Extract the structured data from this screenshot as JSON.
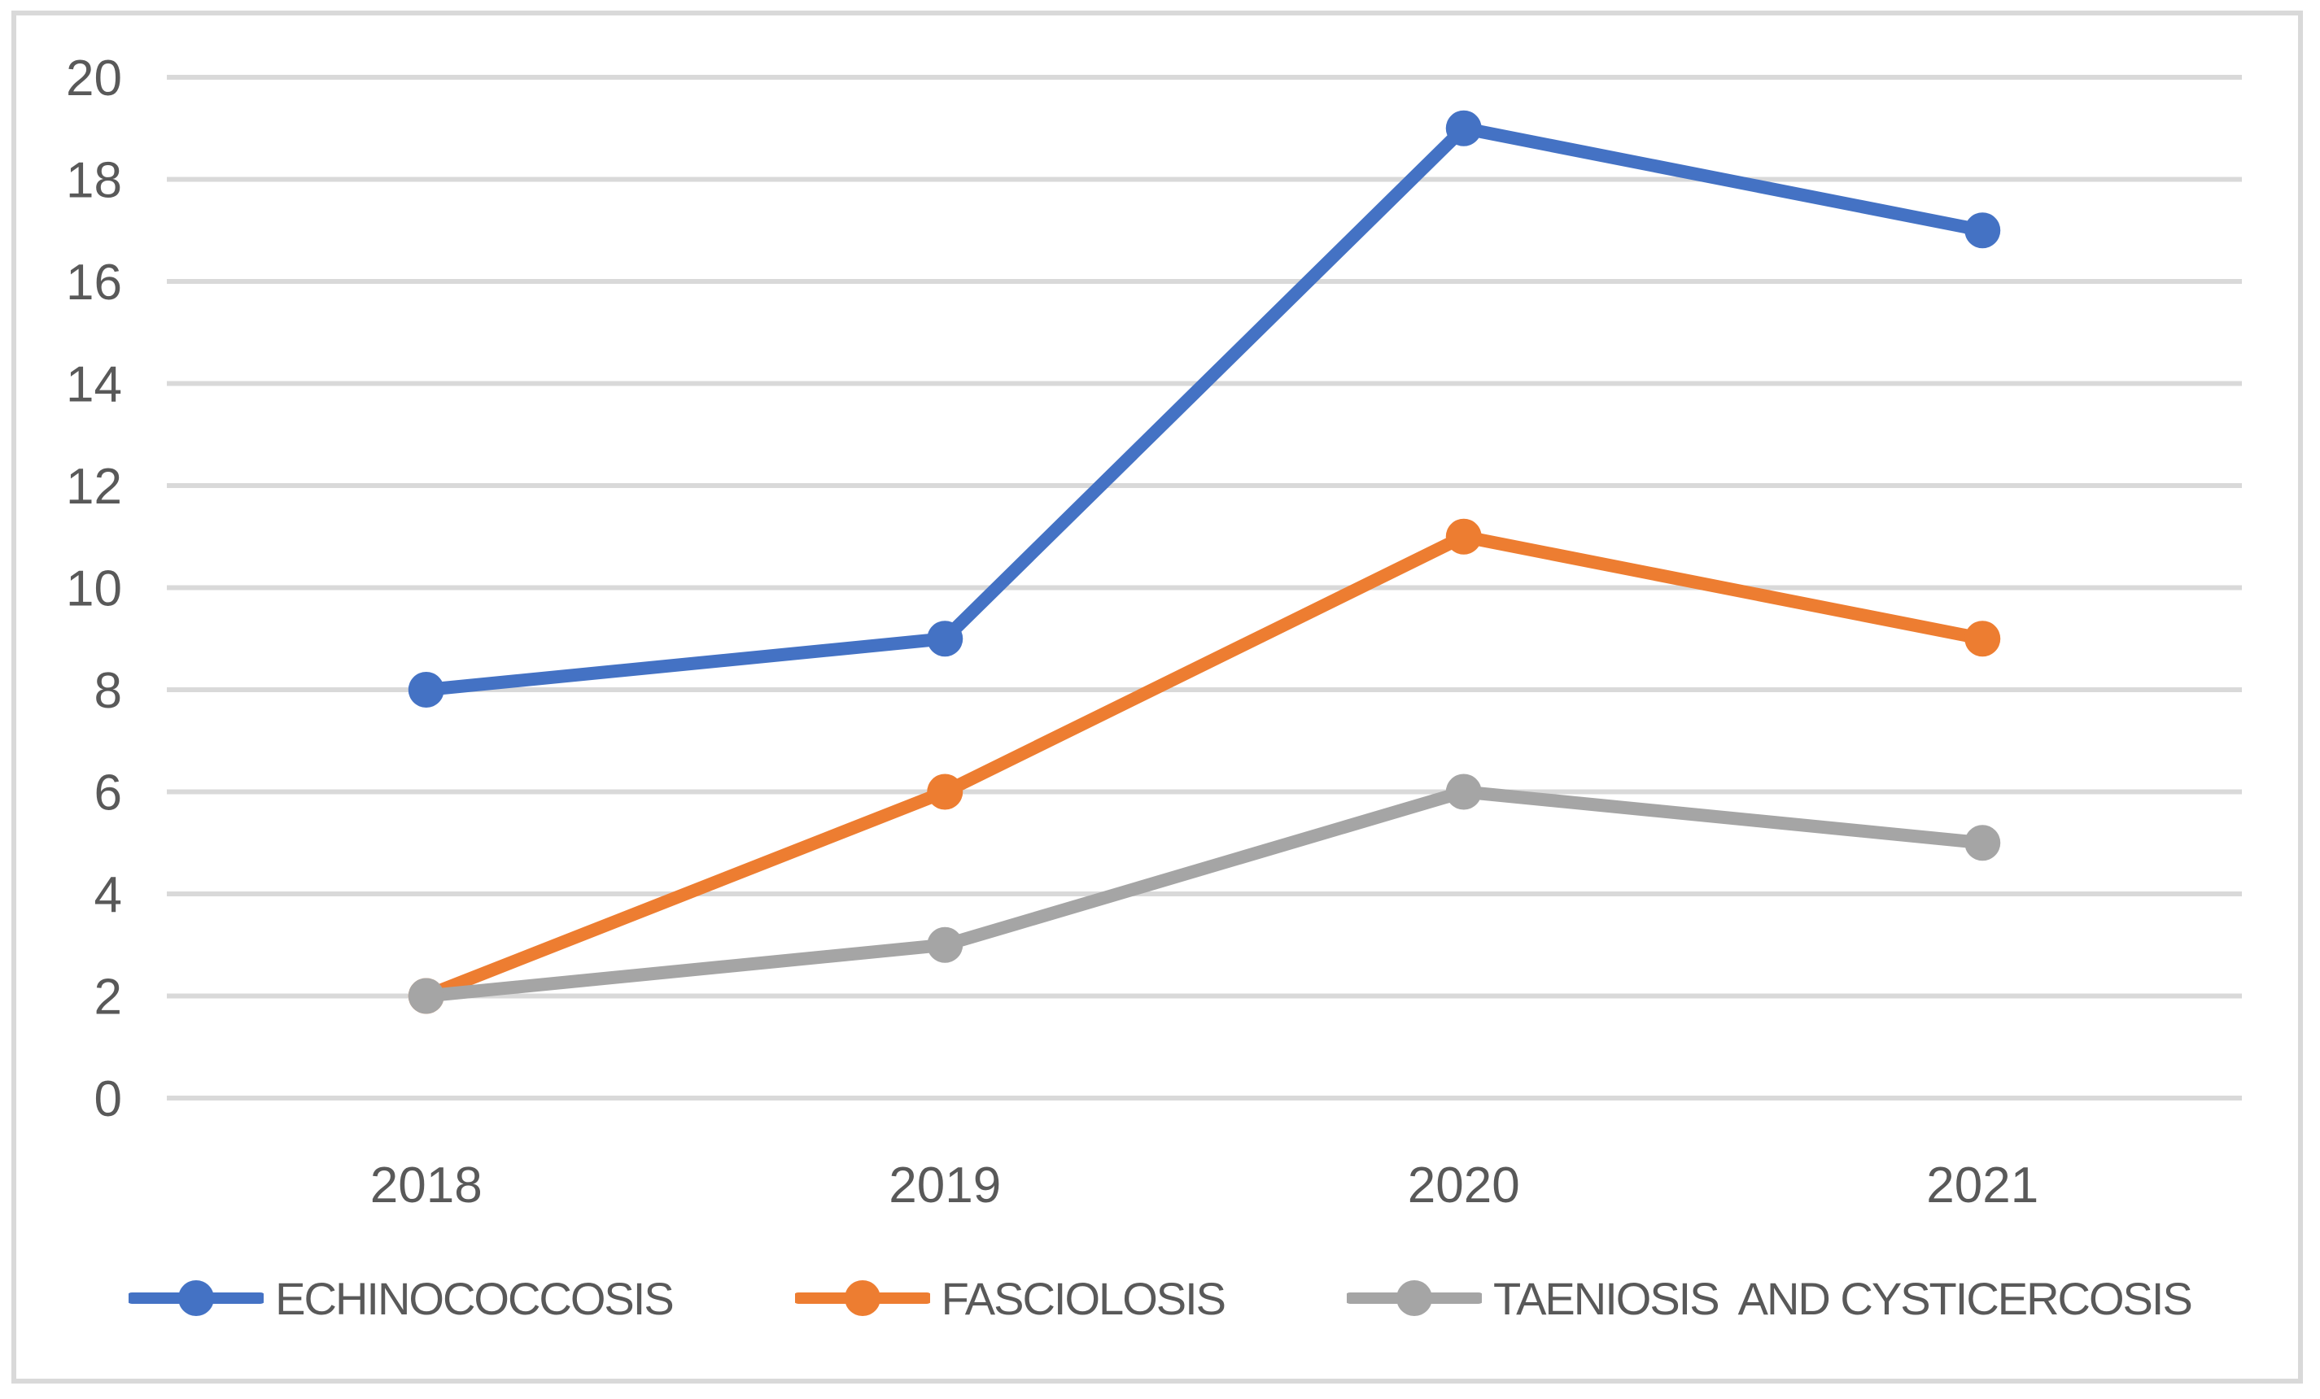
{
  "chart_data": {
    "type": "line",
    "categories": [
      "2018",
      "2019",
      "2020",
      "2021"
    ],
    "series": [
      {
        "name": "ECHINOCOCCOSIS",
        "color": "#4472C4",
        "values": [
          8,
          9,
          19,
          17
        ]
      },
      {
        "name": "FASCIOLOSIS",
        "color": "#ED7D31",
        "values": [
          2,
          6,
          11,
          9
        ]
      },
      {
        "name": "TAENIOSIS  AND CYSTICERCOSIS",
        "color": "#A5A5A5",
        "values": [
          2,
          3,
          6,
          5
        ]
      }
    ],
    "title": "",
    "xlabel": "",
    "ylabel": "",
    "y_axis": {
      "min": 0,
      "max": 20,
      "step": 2,
      "tick_labels": [
        "0",
        "2",
        "4",
        "6",
        "8",
        "10",
        "12",
        "14",
        "16",
        "18",
        "20"
      ]
    },
    "grid": true,
    "legend_position": "bottom",
    "marker_style": "circle",
    "colors": {
      "gridline": "#D9D9D9",
      "frame_border": "#D9D9D9",
      "tick_text": "#595959",
      "legend_text": "#595959",
      "background": "#FFFFFF"
    }
  }
}
